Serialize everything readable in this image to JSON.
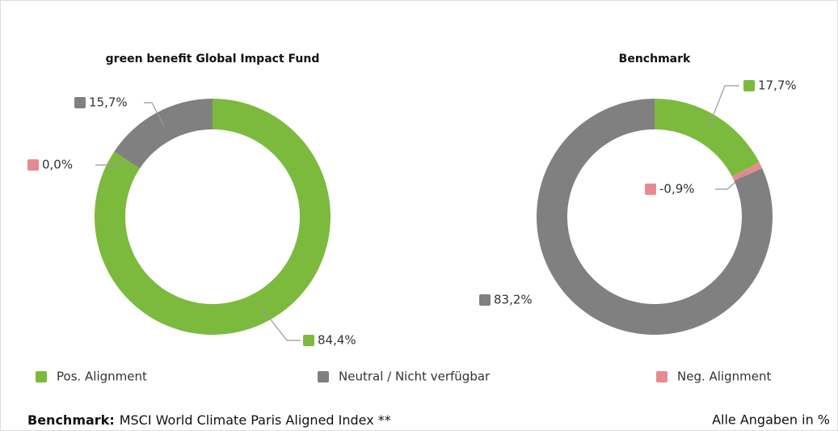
{
  "chart_data": [
    {
      "type": "pie",
      "title": "green benefit Global Impact Fund",
      "categories": [
        "Pos. Alignment",
        "Neg. Alignment",
        "Neutral / Nicht verfügbar"
      ],
      "values": [
        84.4,
        0.0,
        15.7
      ],
      "value_labels": [
        "84,4%",
        "0,0%",
        "15,7%"
      ],
      "colors": [
        "#7cba3d",
        "#e88a8f",
        "#808080"
      ],
      "donut": true
    },
    {
      "type": "pie",
      "title": "Benchmark",
      "categories": [
        "Pos. Alignment",
        "Neg. Alignment",
        "Neutral / Nicht verfügbar"
      ],
      "values": [
        17.7,
        -0.9,
        83.2
      ],
      "value_labels": [
        "17,7%",
        "-0,9%",
        "83,2%"
      ],
      "colors": [
        "#7cba3d",
        "#e88a8f",
        "#808080"
      ],
      "donut": true
    }
  ],
  "footer": {
    "label": "Benchmark:",
    "text": "MSCI World Climate Paris Aligned Index **",
    "note": "Alle Angaben in %"
  }
}
